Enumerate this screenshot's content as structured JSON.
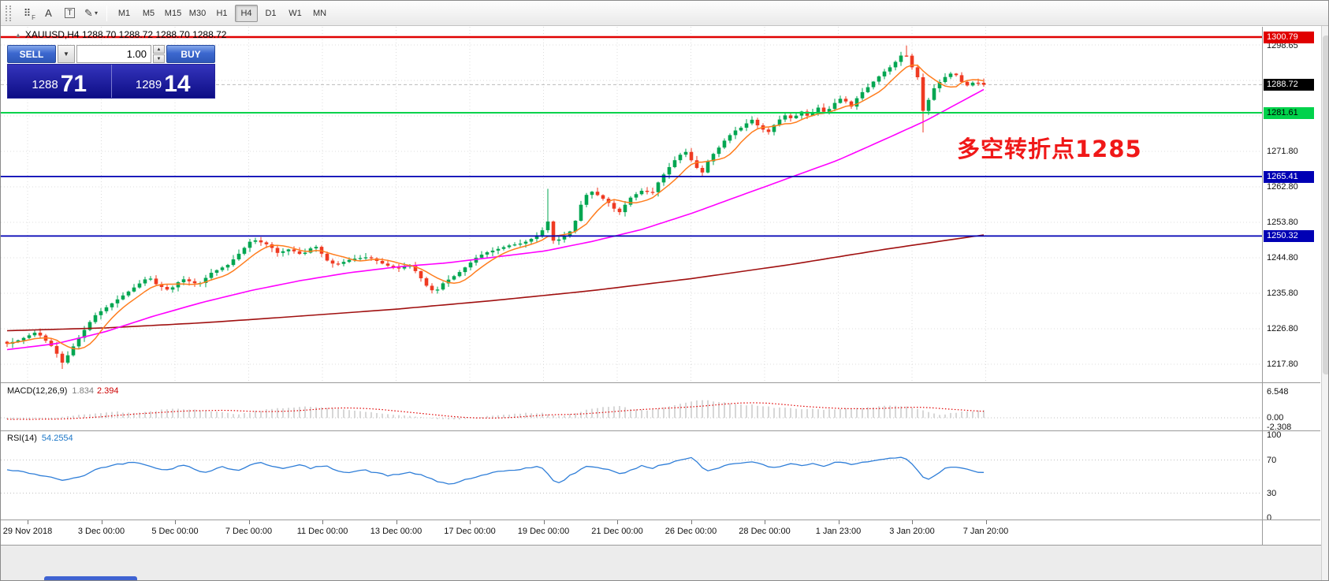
{
  "toolbar": {
    "tools": [
      {
        "name": "grid-snap-tool",
        "glyph": "⠿",
        "badge": "F"
      },
      {
        "name": "text-tool",
        "glyph": "A"
      },
      {
        "name": "text-label-tool",
        "glyph": "T",
        "boxed": true
      },
      {
        "name": "draw-objects-tool",
        "glyph": "✎",
        "caret": "▾"
      }
    ],
    "timeframes": [
      "M1",
      "M5",
      "M15",
      "M30",
      "H1",
      "H4",
      "D1",
      "W1",
      "MN"
    ],
    "active_timeframe": "H4"
  },
  "chart": {
    "title": "XAUUSD,H4 1288.70 1288.72 1288.70 1288.72",
    "annotation": {
      "text": "多空转折点1285",
      "color": "#f01818"
    },
    "trade_panel": {
      "sell_label": "SELL",
      "buy_label": "BUY",
      "volume": "1.00",
      "sell_price": {
        "big": "1288",
        "pips": "71"
      },
      "buy_price": {
        "big": "1289",
        "pips": "14"
      }
    },
    "axis": {
      "plain_labels": [
        "1298.65",
        "1271.80",
        "1262.80",
        "1253.80",
        "1244.80",
        "1235.80",
        "1226.80",
        "1217.80"
      ],
      "badges": [
        {
          "value": "1300.79",
          "bg": "#e00000",
          "fg": "#ffffff",
          "name": "price-badge-resistance"
        },
        {
          "value": "1288.72",
          "bg": "#000000",
          "fg": "#ffffff",
          "name": "price-badge-current"
        },
        {
          "value": "1281.61",
          "bg": "#00d24b",
          "fg": "#000000",
          "name": "price-badge-support"
        },
        {
          "value": "1265.41",
          "bg": "#0000b4",
          "fg": "#ffffff",
          "name": "price-badge-level-1"
        },
        {
          "value": "1250.32",
          "bg": "#0000b4",
          "fg": "#ffffff",
          "name": "price-badge-level-2"
        }
      ]
    },
    "hlines": [
      {
        "price": 1300.79,
        "color": "#e00000",
        "width": 2.4
      },
      {
        "price": 1281.61,
        "color": "#00d24b",
        "width": 2
      },
      {
        "price": 1265.41,
        "color": "#0000b4",
        "width": 1.8
      },
      {
        "price": 1250.32,
        "color": "#0000b4",
        "width": 1.8
      }
    ],
    "current_price": 1288.72
  },
  "chart_data": {
    "type": "candlestick",
    "symbol": "XAUUSD",
    "timeframe": "H4",
    "ohlc_current": {
      "open": "1288.70",
      "high": "1288.72",
      "low": "1288.70",
      "close": "1288.72"
    },
    "y_axis": {
      "grid_start": 1217.8,
      "grid_step": 9.0,
      "grid_count": 10
    },
    "candles": {
      "up_color": "#00a651",
      "down_color": "#ef3a22"
    },
    "price_path": [
      [
        0,
        1223
      ],
      [
        0.013,
        1224
      ],
      [
        0.03,
        1226
      ],
      [
        0.047,
        1222
      ],
      [
        0.057,
        1218
      ],
      [
        0.072,
        1224
      ],
      [
        0.089,
        1230
      ],
      [
        0.106,
        1233
      ],
      [
        0.123,
        1236
      ],
      [
        0.145,
        1240
      ],
      [
        0.153,
        1238
      ],
      [
        0.166,
        1236.5
      ],
      [
        0.179,
        1239.5
      ],
      [
        0.196,
        1238
      ],
      [
        0.209,
        1241
      ],
      [
        0.226,
        1243
      ],
      [
        0.238,
        1246
      ],
      [
        0.251,
        1249.5
      ],
      [
        0.268,
        1248
      ],
      [
        0.277,
        1246
      ],
      [
        0.289,
        1247
      ],
      [
        0.302,
        1245.5
      ],
      [
        0.315,
        1248
      ],
      [
        0.328,
        1244
      ],
      [
        0.336,
        1243
      ],
      [
        0.353,
        1244.5
      ],
      [
        0.37,
        1245
      ],
      [
        0.387,
        1243
      ],
      [
        0.4,
        1242
      ],
      [
        0.413,
        1243
      ],
      [
        0.421,
        1240.5
      ],
      [
        0.43,
        1237.5
      ],
      [
        0.438,
        1236
      ],
      [
        0.447,
        1238.5
      ],
      [
        0.46,
        1240.5
      ],
      [
        0.472,
        1243
      ],
      [
        0.481,
        1245
      ],
      [
        0.489,
        1246
      ],
      [
        0.502,
        1247
      ],
      [
        0.515,
        1248
      ],
      [
        0.528,
        1248.5
      ],
      [
        0.54,
        1250
      ],
      [
        0.549,
        1252
      ],
      [
        0.553,
        1255
      ],
      [
        0.557,
        1249
      ],
      [
        0.566,
        1249.5
      ],
      [
        0.579,
        1252
      ],
      [
        0.587,
        1258
      ],
      [
        0.596,
        1262
      ],
      [
        0.609,
        1260
      ],
      [
        0.617,
        1258.5
      ],
      [
        0.626,
        1256
      ],
      [
        0.638,
        1260
      ],
      [
        0.651,
        1262
      ],
      [
        0.66,
        1261
      ],
      [
        0.668,
        1264.5
      ],
      [
        0.677,
        1267.5
      ],
      [
        0.685,
        1270
      ],
      [
        0.694,
        1272
      ],
      [
        0.702,
        1269
      ],
      [
        0.711,
        1266
      ],
      [
        0.719,
        1270
      ],
      [
        0.728,
        1272.5
      ],
      [
        0.736,
        1275
      ],
      [
        0.745,
        1277
      ],
      [
        0.753,
        1278
      ],
      [
        0.762,
        1280
      ],
      [
        0.77,
        1278
      ],
      [
        0.779,
        1276.5
      ],
      [
        0.787,
        1279
      ],
      [
        0.796,
        1281
      ],
      [
        0.804,
        1280
      ],
      [
        0.813,
        1282
      ],
      [
        0.821,
        1280.5
      ],
      [
        0.83,
        1283
      ],
      [
        0.838,
        1281.5
      ],
      [
        0.847,
        1284
      ],
      [
        0.855,
        1285.5
      ],
      [
        0.864,
        1283
      ],
      [
        0.872,
        1286
      ],
      [
        0.881,
        1288
      ],
      [
        0.889,
        1290
      ],
      [
        0.898,
        1292
      ],
      [
        0.906,
        1293.5
      ],
      [
        0.915,
        1296
      ],
      [
        0.919,
        1297.5
      ],
      [
        0.923,
        1294.5
      ],
      [
        0.932,
        1291
      ],
      [
        0.936,
        1283
      ],
      [
        0.94,
        1281
      ],
      [
        0.945,
        1286.5
      ],
      [
        0.953,
        1289
      ],
      [
        0.962,
        1291
      ],
      [
        0.97,
        1292
      ],
      [
        0.974,
        1290
      ],
      [
        0.983,
        1288.5
      ],
      [
        0.991,
        1289.5
      ],
      [
        1,
        1288.7
      ]
    ],
    "spikes": [
      {
        "t": 0.057,
        "low": 1216.6
      },
      {
        "t": 0.553,
        "high": 1262.3
      },
      {
        "t": 0.919,
        "high": 1298.65
      },
      {
        "t": 0.94,
        "low": 1276.6
      }
    ],
    "ma_fast": {
      "color": "#ff7d1e"
    },
    "ma_mid": {
      "color": "#ff00ff",
      "path": [
        [
          0,
          1221.5
        ],
        [
          0.05,
          1223
        ],
        [
          0.1,
          1226
        ],
        [
          0.15,
          1230
        ],
        [
          0.2,
          1233.5
        ],
        [
          0.25,
          1236.5
        ],
        [
          0.3,
          1239
        ],
        [
          0.35,
          1241
        ],
        [
          0.4,
          1242.5
        ],
        [
          0.45,
          1243.5
        ],
        [
          0.5,
          1245
        ],
        [
          0.55,
          1246.5
        ],
        [
          0.6,
          1249
        ],
        [
          0.65,
          1252
        ],
        [
          0.7,
          1256
        ],
        [
          0.75,
          1260.5
        ],
        [
          0.8,
          1265
        ],
        [
          0.85,
          1269.5
        ],
        [
          0.9,
          1275
        ],
        [
          0.94,
          1279.5
        ],
        [
          0.97,
          1283.5
        ],
        [
          1,
          1287.5
        ]
      ]
    },
    "ma_slow": {
      "color": "#a01010",
      "path": [
        [
          0,
          1226.3
        ],
        [
          0.1,
          1227
        ],
        [
          0.2,
          1228.3
        ],
        [
          0.3,
          1230
        ],
        [
          0.4,
          1231.8
        ],
        [
          0.5,
          1234
        ],
        [
          0.6,
          1236.5
        ],
        [
          0.7,
          1239.5
        ],
        [
          0.8,
          1243
        ],
        [
          0.9,
          1247
        ],
        [
          1,
          1250.6
        ]
      ]
    },
    "macd": {
      "label": "MACD(12,26,9)",
      "value_main": "1.834",
      "value_signal": "2.394",
      "scale_labels": [
        "6.548",
        "0.00",
        "-2.308"
      ],
      "bar_color": "#c6c6c6",
      "signal_color": "#e00000",
      "path": [
        [
          0,
          -0.3
        ],
        [
          0.02,
          -0.4
        ],
        [
          0.05,
          -0.2
        ],
        [
          0.06,
          0.3
        ],
        [
          0.09,
          1.2
        ],
        [
          0.11,
          1.5
        ],
        [
          0.13,
          1.3
        ],
        [
          0.15,
          1.8
        ],
        [
          0.17,
          2.3
        ],
        [
          0.19,
          2.1
        ],
        [
          0.21,
          1.6
        ],
        [
          0.23,
          1.2
        ],
        [
          0.235,
          0.8
        ],
        [
          0.25,
          1.5
        ],
        [
          0.27,
          2.2
        ],
        [
          0.29,
          2.6
        ],
        [
          0.31,
          2.8
        ],
        [
          0.33,
          2.5
        ],
        [
          0.35,
          2
        ],
        [
          0.37,
          1.4
        ],
        [
          0.39,
          0.9
        ],
        [
          0.41,
          0.5
        ],
        [
          0.43,
          0.1
        ],
        [
          0.445,
          -0.3
        ],
        [
          0.46,
          -0.4
        ],
        [
          0.47,
          -0.2
        ],
        [
          0.49,
          0.3
        ],
        [
          0.51,
          0.8
        ],
        [
          0.53,
          1.1
        ],
        [
          0.545,
          1.3
        ],
        [
          0.555,
          0.9
        ],
        [
          0.565,
          0.5
        ],
        [
          0.58,
          1
        ],
        [
          0.59,
          1.8
        ],
        [
          0.6,
          2.4
        ],
        [
          0.61,
          2.8
        ],
        [
          0.625,
          3
        ],
        [
          0.64,
          2.2
        ],
        [
          0.655,
          1.8
        ],
        [
          0.665,
          2.2
        ],
        [
          0.675,
          2.8
        ],
        [
          0.685,
          3.4
        ],
        [
          0.695,
          3.9
        ],
        [
          0.705,
          4.3
        ],
        [
          0.715,
          4.4
        ],
        [
          0.725,
          4.2
        ],
        [
          0.735,
          3.8
        ],
        [
          0.745,
          3.5
        ],
        [
          0.755,
          3.3
        ],
        [
          0.765,
          3.2
        ],
        [
          0.775,
          2.9
        ],
        [
          0.785,
          2.6
        ],
        [
          0.8,
          2.4
        ],
        [
          0.815,
          2.2
        ],
        [
          0.83,
          2.1
        ],
        [
          0.845,
          2.2
        ],
        [
          0.86,
          2.3
        ],
        [
          0.875,
          2.5
        ],
        [
          0.89,
          2.7
        ],
        [
          0.9,
          2.9
        ],
        [
          0.91,
          3
        ],
        [
          0.92,
          2.9
        ],
        [
          0.93,
          2.4
        ],
        [
          0.94,
          1.6
        ],
        [
          0.95,
          1
        ],
        [
          0.955,
          0.7
        ],
        [
          0.96,
          0.9
        ],
        [
          0.97,
          1.3
        ],
        [
          0.98,
          1.6
        ],
        [
          0.99,
          1.75
        ],
        [
          1,
          1.834
        ]
      ]
    },
    "rsi": {
      "label": "RSI(14)",
      "value": "54.2554",
      "levels": [
        "100",
        "70",
        "30",
        "0"
      ],
      "color": "#2f7ed8",
      "path": [
        [
          0,
          58
        ],
        [
          0.02,
          55
        ],
        [
          0.04,
          50
        ],
        [
          0.06,
          45
        ],
        [
          0.08,
          52
        ],
        [
          0.09,
          58
        ],
        [
          0.1,
          62
        ],
        [
          0.12,
          66
        ],
        [
          0.13,
          68
        ],
        [
          0.145,
          64
        ],
        [
          0.155,
          58
        ],
        [
          0.17,
          60
        ],
        [
          0.18,
          64
        ],
        [
          0.19,
          60
        ],
        [
          0.2,
          55
        ],
        [
          0.21,
          58
        ],
        [
          0.22,
          62
        ],
        [
          0.235,
          57
        ],
        [
          0.25,
          64
        ],
        [
          0.26,
          67
        ],
        [
          0.27,
          63
        ],
        [
          0.285,
          60
        ],
        [
          0.3,
          64
        ],
        [
          0.31,
          60
        ],
        [
          0.325,
          63
        ],
        [
          0.34,
          57
        ],
        [
          0.35,
          55
        ],
        [
          0.365,
          58
        ],
        [
          0.38,
          54
        ],
        [
          0.39,
          51
        ],
        [
          0.4,
          53
        ],
        [
          0.415,
          55
        ],
        [
          0.43,
          49
        ],
        [
          0.44,
          44
        ],
        [
          0.45,
          42
        ],
        [
          0.455,
          40
        ],
        [
          0.465,
          45
        ],
        [
          0.475,
          48
        ],
        [
          0.49,
          52
        ],
        [
          0.5,
          55
        ],
        [
          0.51,
          57
        ],
        [
          0.52,
          58
        ],
        [
          0.53,
          60
        ],
        [
          0.545,
          62
        ],
        [
          0.553,
          55
        ],
        [
          0.56,
          44
        ],
        [
          0.565,
          42
        ],
        [
          0.575,
          50
        ],
        [
          0.585,
          57
        ],
        [
          0.595,
          63
        ],
        [
          0.61,
          60
        ],
        [
          0.62,
          57
        ],
        [
          0.63,
          53
        ],
        [
          0.64,
          58
        ],
        [
          0.65,
          63
        ],
        [
          0.66,
          60
        ],
        [
          0.67,
          64
        ],
        [
          0.68,
          67
        ],
        [
          0.69,
          70
        ],
        [
          0.697,
          71
        ],
        [
          0.703,
          73
        ],
        [
          0.715,
          56
        ],
        [
          0.725,
          60
        ],
        [
          0.735,
          63
        ],
        [
          0.745,
          66
        ],
        [
          0.755,
          67
        ],
        [
          0.765,
          69
        ],
        [
          0.775,
          63
        ],
        [
          0.785,
          60
        ],
        [
          0.795,
          64
        ],
        [
          0.805,
          66
        ],
        [
          0.815,
          63
        ],
        [
          0.825,
          66
        ],
        [
          0.835,
          62
        ],
        [
          0.845,
          66
        ],
        [
          0.855,
          68
        ],
        [
          0.865,
          64
        ],
        [
          0.875,
          67
        ],
        [
          0.885,
          69
        ],
        [
          0.895,
          71
        ],
        [
          0.905,
          72
        ],
        [
          0.915,
          74
        ],
        [
          0.922,
          70
        ],
        [
          0.93,
          62
        ],
        [
          0.937,
          50
        ],
        [
          0.945,
          47
        ],
        [
          0.952,
          53
        ],
        [
          0.96,
          60
        ],
        [
          0.968,
          62
        ],
        [
          0.975,
          60
        ],
        [
          0.985,
          58
        ],
        [
          1,
          54.26
        ]
      ]
    },
    "time_labels": [
      "29 Nov 2018",
      "3 Dec 00:00",
      "5 Dec 00:00",
      "7 Dec 00:00",
      "11 Dec 00:00",
      "13 Dec 00:00",
      "17 Dec 00:00",
      "19 Dec 00:00",
      "21 Dec 00:00",
      "26 Dec 00:00",
      "28 Dec 00:00",
      "1 Jan 23:00",
      "3 Jan 20:00",
      "7 Jan 20:00"
    ]
  }
}
